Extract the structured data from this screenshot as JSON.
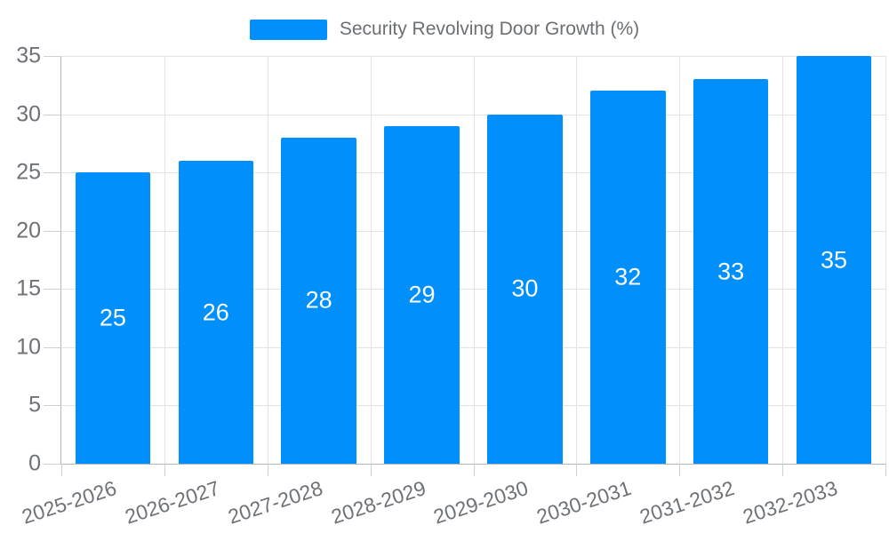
{
  "chart_data": {
    "type": "bar",
    "title": "Security Revolving Door Growth (%)",
    "categories": [
      "2025-2026",
      "2026-2027",
      "2027-2028",
      "2028-2029",
      "2029-2030",
      "2030-2031",
      "2031-2032",
      "2032-2033"
    ],
    "series": [
      {
        "name": "Security Revolving Door Growth (%)",
        "values": [
          25,
          26,
          28,
          29,
          30,
          32,
          33,
          35
        ]
      }
    ],
    "ylim": [
      0,
      35
    ],
    "ytick_step": 5,
    "xlabel": "",
    "ylabel": "",
    "grid": "horizontal lines at every 5 units plus vertical lines at category boundaries",
    "legend_position": "top center",
    "bar_value_labels": "shown in white, centered inside each bar",
    "xlabel_rotation_deg": -18
  },
  "legend": {
    "items": [
      {
        "label": "Security Revolving Door Growth (%)",
        "color": "#008FFB"
      }
    ]
  },
  "colors": {
    "bar": "#008FFB",
    "bar_label": "#FFFFFF",
    "grid": "#E3E3E3",
    "axis_line": "#B3B6B9",
    "tick": "#CFCFCF",
    "axis_label": "#6E7276",
    "legend_text": "#6B6F72",
    "bg": "#FFFFFF"
  }
}
